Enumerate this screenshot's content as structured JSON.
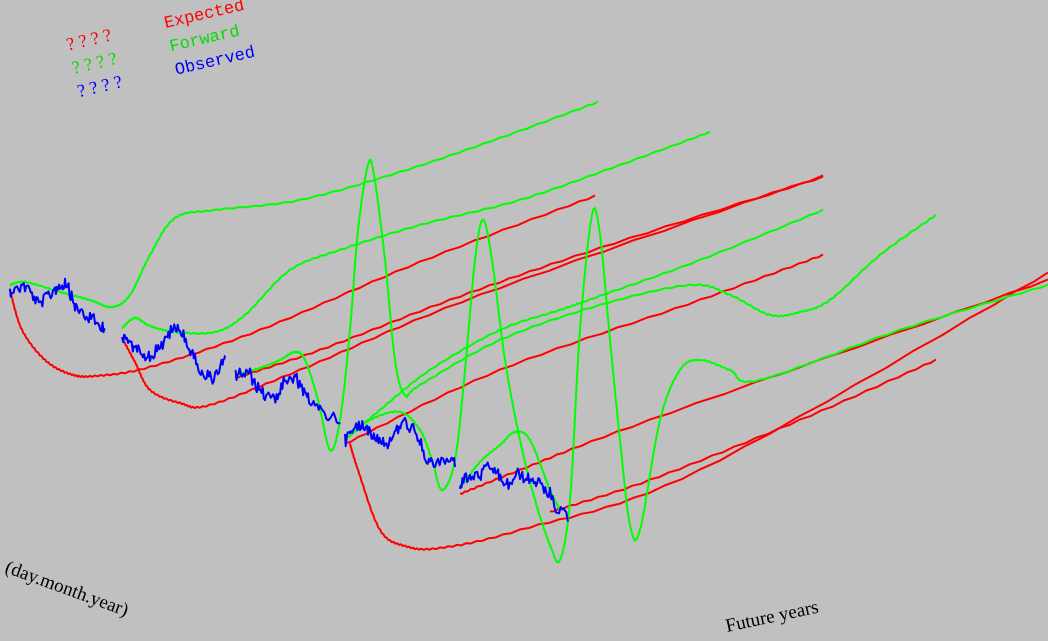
{
  "chart_data": {
    "type": "line",
    "title": "",
    "legend": {
      "placement": "top-left",
      "entries": [
        {
          "marker": "? ? ? ?",
          "label": "Expected",
          "color": "#ff0000"
        },
        {
          "marker": "? ? ? ?",
          "label": "Forward",
          "color": "#00ff00"
        },
        {
          "marker": "? ? ? ?",
          "label": "Observed",
          "color": "#0000ff"
        }
      ]
    },
    "axis_labels": {
      "date_axis": "(day.month.year)",
      "future_axis": "Future years"
    },
    "grid": false,
    "series": [
      {
        "name": "Observed",
        "color": "#0000ff",
        "kind": "observed",
        "segments": 5
      },
      {
        "name": "Forward",
        "color": "#00ff00",
        "kind": "forward",
        "curves": 6
      },
      {
        "name": "Expected",
        "color": "#ff0000",
        "kind": "expected",
        "curves": 7
      }
    ]
  }
}
